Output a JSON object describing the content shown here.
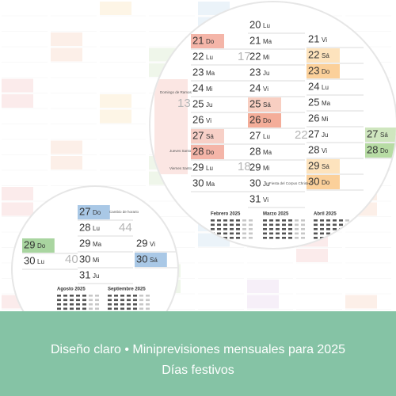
{
  "banner": {
    "line1": "Diseño claro • Miniprevisiones mensuales para 2025",
    "line2": "Días festivos",
    "color": "#85c3a5"
  },
  "magnifier_large": {
    "columns": [
      {
        "cells": [
          {
            "day": "21",
            "dow": "Do",
            "highlight": "#f4b5a8"
          },
          {
            "day": "22",
            "dow": "Lu"
          },
          {
            "day": "23",
            "dow": "Ma"
          },
          {
            "day": "24",
            "dow": "Mi"
          },
          {
            "day": "25",
            "dow": "Ju"
          },
          {
            "day": "26",
            "dow": "Vi"
          },
          {
            "day": "27",
            "dow": "Sá",
            "highlight": "#f7d0c7"
          },
          {
            "day": "28",
            "dow": "Do",
            "highlight": "#f4b5a8"
          },
          {
            "day": "29",
            "dow": "Lu"
          },
          {
            "day": "30",
            "dow": "Ma"
          }
        ]
      },
      {
        "cells": [
          {
            "day": "20",
            "dow": "Lu"
          },
          {
            "day": "21",
            "dow": "Ma"
          },
          {
            "day": "22",
            "dow": "Mi"
          },
          {
            "day": "23",
            "dow": "Ju"
          },
          {
            "day": "24",
            "dow": "Vi"
          },
          {
            "day": "25",
            "dow": "Sá",
            "highlight": "#f8cfc2"
          },
          {
            "day": "26",
            "dow": "Do",
            "highlight": "#f4ad99"
          },
          {
            "day": "27",
            "dow": "Lu"
          },
          {
            "day": "28",
            "dow": "Ma"
          },
          {
            "day": "29",
            "dow": "Mi"
          },
          {
            "day": "30",
            "dow": "Ju"
          },
          {
            "day": "31",
            "dow": "Vi"
          }
        ]
      },
      {
        "cells": [
          {
            "day": "21",
            "dow": "Vi"
          },
          {
            "day": "22",
            "dow": "Sá",
            "highlight": "#fde3bd"
          },
          {
            "day": "23",
            "dow": "Do",
            "highlight": "#fbd09a"
          },
          {
            "day": "24",
            "dow": "Lu"
          },
          {
            "day": "25",
            "dow": "Ma"
          },
          {
            "day": "26",
            "dow": "Mi"
          },
          {
            "day": "27",
            "dow": "Ju"
          },
          {
            "day": "28",
            "dow": "Vi"
          },
          {
            "day": "29",
            "dow": "Sá",
            "highlight": "#fde3bd"
          },
          {
            "day": "30",
            "dow": "Do",
            "highlight": "#fbd09a"
          }
        ]
      },
      {
        "cells": [
          {
            "day": "27",
            "dow": "Sá",
            "highlight": "#cfe6bf"
          },
          {
            "day": "28",
            "dow": "Do",
            "highlight": "#b7dca4"
          }
        ]
      }
    ],
    "week_numbers": [
      "17",
      "13",
      "22",
      "18"
    ],
    "notes": [
      "Domingo de Ramos",
      "Jueves Santo",
      "Viernes Santo",
      "Fiesta del Corpus Christi C"
    ],
    "month_titles": [
      "Febrero 2025",
      "Marzo 2025",
      "Abril 2025"
    ]
  },
  "magnifier_small": {
    "columns": [
      {
        "cells": [
          {
            "day": "29",
            "dow": "Do",
            "highlight": "#a9d5a0"
          },
          {
            "day": "30",
            "dow": "Lu"
          }
        ]
      },
      {
        "cells": [
          {
            "day": "27",
            "dow": "Do",
            "highlight": "#a9c8e6"
          },
          {
            "day": "28",
            "dow": "Lu"
          },
          {
            "day": "29",
            "dow": "Ma"
          },
          {
            "day": "30",
            "dow": "Mi"
          },
          {
            "day": "31",
            "dow": "Ju"
          }
        ]
      },
      {
        "cells": [
          {
            "day": "29",
            "dow": "Vi"
          },
          {
            "day": "30",
            "dow": "Sá",
            "highlight": "#a9c8e6"
          }
        ]
      }
    ],
    "week_numbers": [
      "40",
      "44"
    ],
    "notes": [
      "Cambio de horario"
    ],
    "month_titles": [
      "Agosto 2025",
      "Septiembre 2025"
    ]
  }
}
